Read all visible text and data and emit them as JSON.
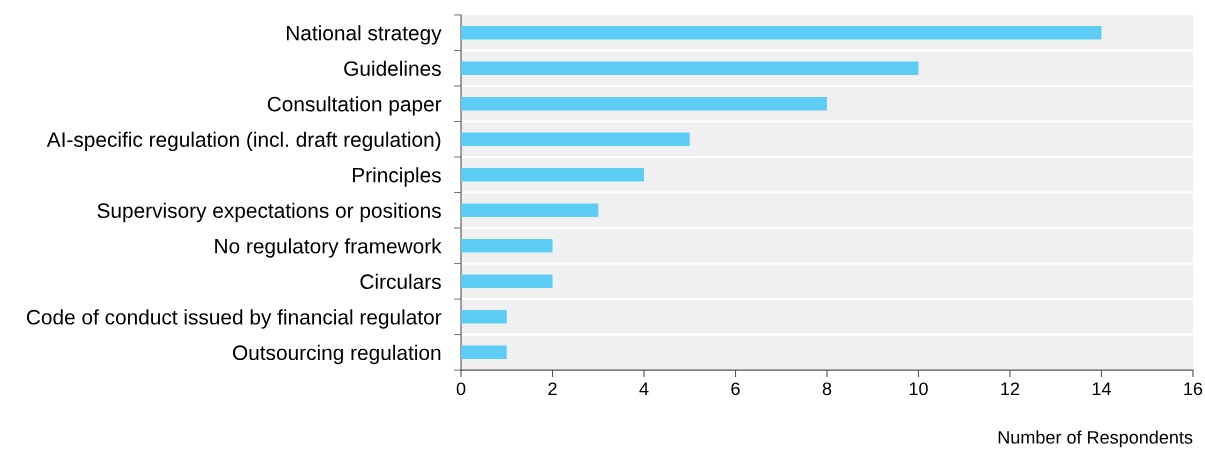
{
  "chart_data": {
    "type": "bar",
    "orientation": "horizontal",
    "categories": [
      "National strategy",
      "Guidelines",
      "Consultation paper",
      "AI-specific regulation (incl. draft regulation)",
      "Principles",
      "Supervisory expectations or positions",
      "No regulatory framework",
      "Circulars",
      "Code of conduct issued by financial regulator",
      "Outsourcing regulation"
    ],
    "values": [
      14,
      10,
      8,
      5,
      4,
      3,
      2,
      2,
      1,
      1
    ],
    "color": "#5ecdf5",
    "xlim": [
      0,
      16
    ],
    "xticks": [
      0,
      2,
      4,
      6,
      8,
      10,
      12,
      14,
      16
    ],
    "xlabel": "Number of Respondents",
    "grid": "y"
  }
}
